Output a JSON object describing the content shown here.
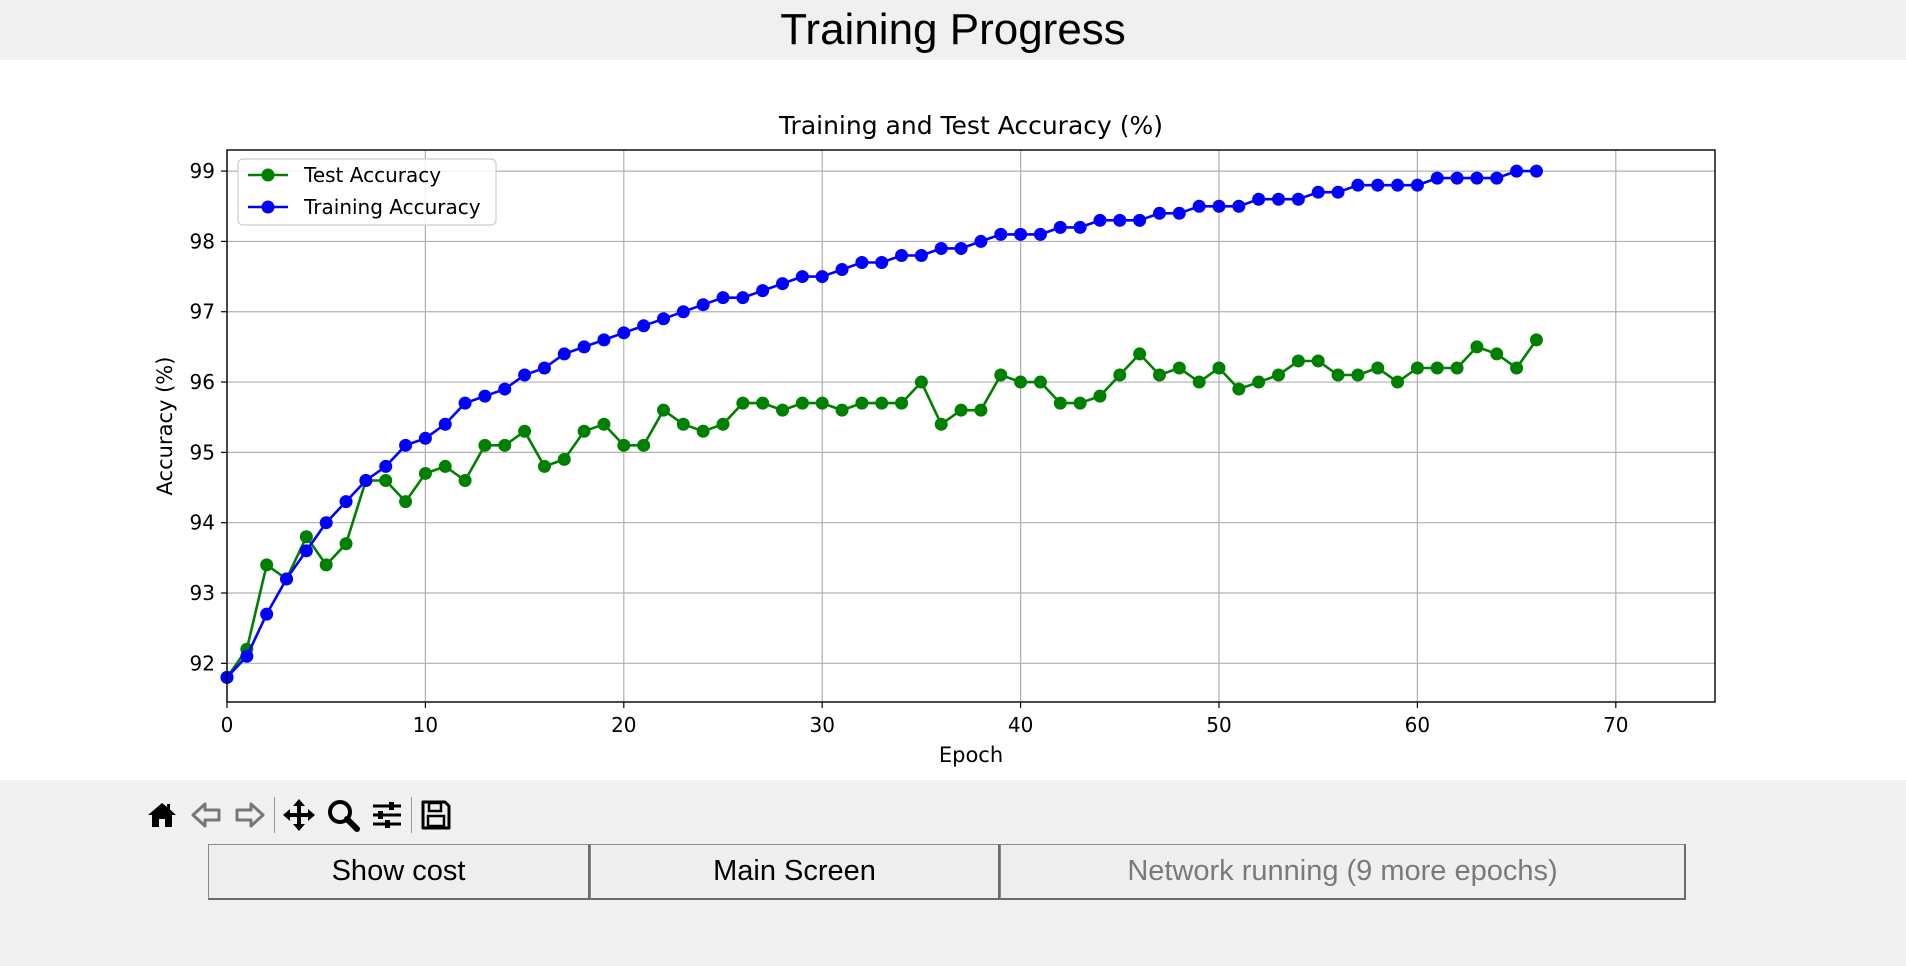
{
  "window": {
    "title": "Training Progress"
  },
  "toolbar": {
    "icons": [
      "home-icon",
      "back-arrow-icon",
      "forward-arrow-icon",
      "pan-icon",
      "zoom-icon",
      "configure-subplots-icon",
      "save-icon"
    ]
  },
  "buttons": {
    "show_cost": "Show cost",
    "main_screen": "Main Screen",
    "status": "Network running (9 more epochs)"
  },
  "chart_data": {
    "type": "line",
    "title": "Training and Test Accuracy (%)",
    "xlabel": "Epoch",
    "ylabel": "Accuracy (%)",
    "xlim": [
      0,
      75
    ],
    "ylim": [
      91.45,
      99.3
    ],
    "xticks": [
      0,
      10,
      20,
      30,
      40,
      50,
      60,
      70
    ],
    "yticks": [
      92,
      93,
      94,
      95,
      96,
      97,
      98,
      99
    ],
    "grid": true,
    "legend": "top-left",
    "x": [
      0,
      1,
      2,
      3,
      4,
      5,
      6,
      7,
      8,
      9,
      10,
      11,
      12,
      13,
      14,
      15,
      16,
      17,
      18,
      19,
      20,
      21,
      22,
      23,
      24,
      25,
      26,
      27,
      28,
      29,
      30,
      31,
      32,
      33,
      34,
      35,
      36,
      37,
      38,
      39,
      40,
      41,
      42,
      43,
      44,
      45,
      46,
      47,
      48,
      49,
      50,
      51,
      52,
      53,
      54,
      55,
      56,
      57,
      58,
      59,
      60,
      61,
      62,
      63,
      64,
      65,
      66
    ],
    "series": [
      {
        "name": "Test Accuracy",
        "color": "#008000",
        "values": [
          91.8,
          92.2,
          93.4,
          93.2,
          93.8,
          93.4,
          93.7,
          94.6,
          94.6,
          94.3,
          94.7,
          94.8,
          94.6,
          95.1,
          95.1,
          95.3,
          94.8,
          94.9,
          95.3,
          95.4,
          95.1,
          95.1,
          95.6,
          95.4,
          95.3,
          95.4,
          95.7,
          95.7,
          95.6,
          95.7,
          95.7,
          95.6,
          95.7,
          95.7,
          95.7,
          96.0,
          95.4,
          95.6,
          95.6,
          96.1,
          96.0,
          96.0,
          95.7,
          95.7,
          95.8,
          96.1,
          96.4,
          96.1,
          96.2,
          96.0,
          96.2,
          95.9,
          96.0,
          96.1,
          96.3,
          96.3,
          96.1,
          96.1,
          96.2,
          96.0,
          96.2,
          96.2,
          96.2,
          96.5,
          96.4,
          96.2,
          96.6
        ]
      },
      {
        "name": "Training Accuracy",
        "color": "#0000ff",
        "values": [
          91.8,
          92.1,
          92.7,
          93.2,
          93.6,
          94.0,
          94.3,
          94.6,
          94.8,
          95.1,
          95.2,
          95.4,
          95.7,
          95.8,
          95.9,
          96.1,
          96.2,
          96.4,
          96.5,
          96.6,
          96.7,
          96.8,
          96.9,
          97.0,
          97.1,
          97.2,
          97.2,
          97.3,
          97.4,
          97.5,
          97.5,
          97.6,
          97.7,
          97.7,
          97.8,
          97.8,
          97.9,
          97.9,
          98.0,
          98.1,
          98.1,
          98.1,
          98.2,
          98.2,
          98.3,
          98.3,
          98.3,
          98.4,
          98.4,
          98.5,
          98.5,
          98.5,
          98.6,
          98.6,
          98.6,
          98.7,
          98.7,
          98.8,
          98.8,
          98.8,
          98.8,
          98.9,
          98.9,
          98.9,
          98.9,
          99.0,
          99.0
        ]
      }
    ]
  }
}
